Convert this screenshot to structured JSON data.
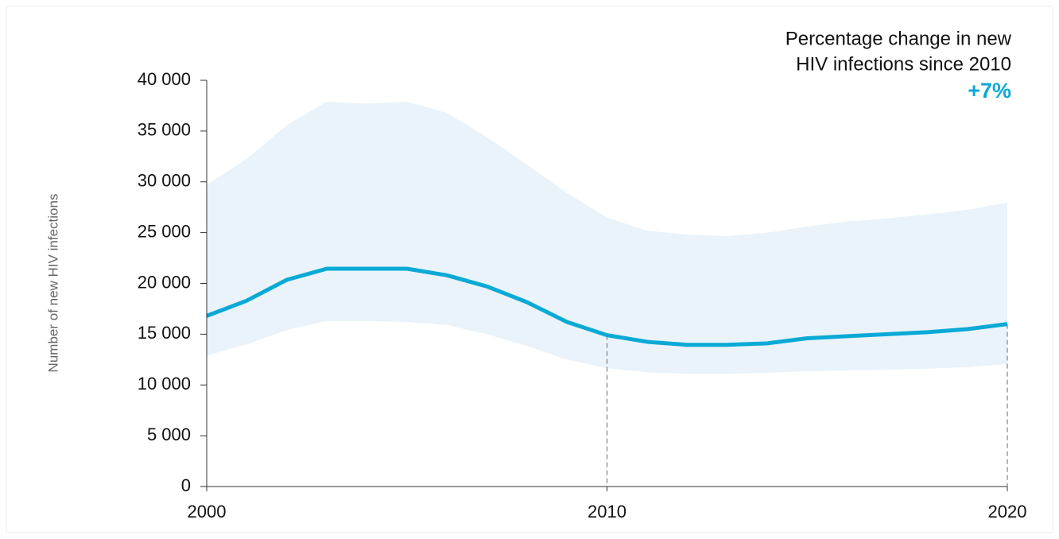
{
  "chart_data": {
    "type": "line",
    "y_label": "Number of new HIV infections",
    "annotation": [
      "Percentage change in new",
      "HIV infections since 2010"
    ],
    "annotation_value_label": "+7%",
    "x": [
      2000,
      2001,
      2002,
      2003,
      2004,
      2005,
      2006,
      2007,
      2008,
      2009,
      2010,
      2011,
      2012,
      2013,
      2014,
      2015,
      2016,
      2017,
      2018,
      2019,
      2020
    ],
    "values": [
      16800,
      18300,
      20350,
      21450,
      21450,
      21450,
      20800,
      19700,
      18150,
      16200,
      14900,
      14250,
      13950,
      13950,
      14100,
      14600,
      14800,
      15000,
      15200,
      15500,
      16000
    ],
    "upper": [
      29700,
      32250,
      35600,
      37900,
      37700,
      37900,
      36800,
      34400,
      31700,
      28900,
      26500,
      25200,
      24800,
      24650,
      25000,
      25600,
      26100,
      26400,
      26800,
      27250,
      27950
    ],
    "lower": [
      12900,
      14000,
      15400,
      16300,
      16300,
      16200,
      15900,
      15000,
      13850,
      12500,
      11650,
      11250,
      11100,
      11100,
      11200,
      11350,
      11450,
      11500,
      11600,
      11750,
      12050
    ],
    "color": "#0aa9d6",
    "band_color": "#eaf3fa",
    "reference_x": [
      2010,
      2020
    ],
    "xlim": [
      2000,
      2020
    ],
    "xticks": [
      2000,
      2010,
      2020
    ],
    "ylim": [
      0,
      40000
    ],
    "yticks": [
      0,
      {
        "value": 5000,
        "label": "5 000"
      },
      {
        "value": 10000,
        "label": "10 000"
      },
      {
        "value": 15000,
        "label": "15 000"
      },
      {
        "value": 20000,
        "label": "20 000"
      },
      {
        "value": 25000,
        "label": "25 000"
      },
      {
        "value": 30000,
        "label": "30 000"
      },
      {
        "value": 35000,
        "label": "35 000"
      },
      {
        "value": 40000,
        "label": "40 000"
      }
    ]
  }
}
